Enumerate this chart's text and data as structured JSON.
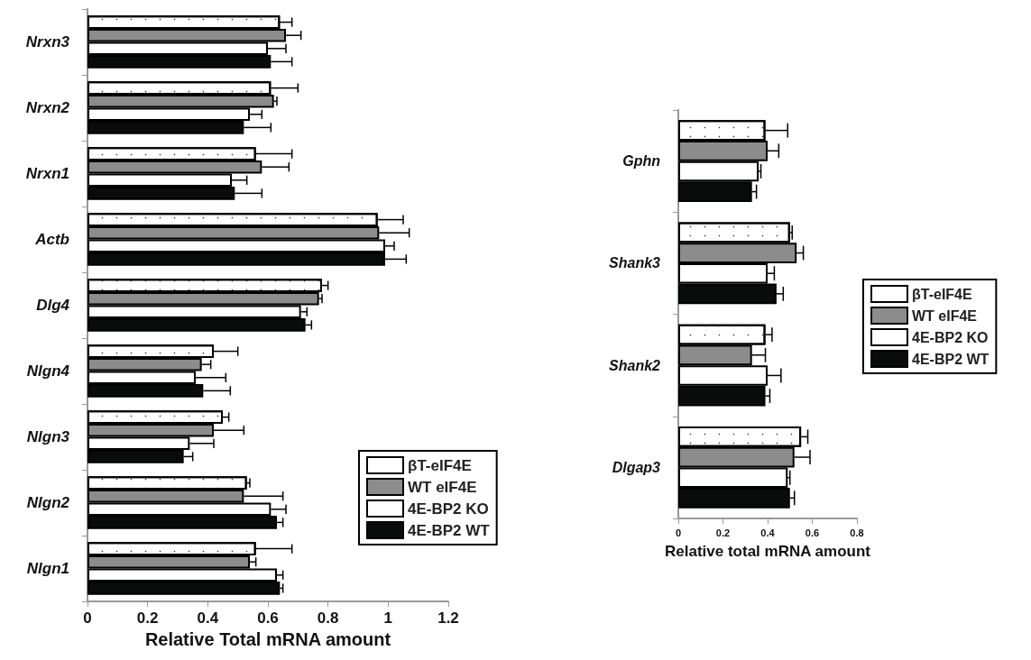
{
  "chart_data": [
    {
      "type": "bar",
      "orientation": "horizontal",
      "xlabel": "Relative Total mRNA amount",
      "categories": [
        "Nrxn3",
        "Nrxn2",
        "Nrxn1",
        "Actb",
        "Dlg4",
        "Nlgn4",
        "Nlgn3",
        "Nlgn2",
        "Nlgn1"
      ],
      "series": [
        {
          "name": "βT-eIF4E",
          "color": "#ffffff",
          "values": [
            0.64,
            0.61,
            0.56,
            0.965,
            0.78,
            0.42,
            0.45,
            0.53,
            0.56
          ],
          "errors": [
            0.04,
            0.09,
            0.12,
            0.085,
            0.02,
            0.08,
            0.02,
            0.01,
            0.12
          ]
        },
        {
          "name": "WT eIF4E",
          "color": "#8c8c8c",
          "values": [
            0.66,
            0.62,
            0.58,
            0.97,
            0.77,
            0.38,
            0.42,
            0.52,
            0.54
          ],
          "errors": [
            0.05,
            0.01,
            0.09,
            0.1,
            0.01,
            0.03,
            0.1,
            0.13,
            0.02
          ]
        },
        {
          "name": "4E-BP2 KO",
          "color": "#ffffff",
          "values": [
            0.6,
            0.54,
            0.48,
            0.99,
            0.71,
            0.36,
            0.34,
            0.61,
            0.63
          ],
          "errors": [
            0.06,
            0.04,
            0.05,
            0.03,
            0.02,
            0.1,
            0.08,
            0.05,
            0.02
          ]
        },
        {
          "name": "4E-BP2 WT",
          "color": "#0a0c0c",
          "values": [
            0.61,
            0.52,
            0.49,
            0.99,
            0.725,
            0.385,
            0.32,
            0.63,
            0.64
          ],
          "errors": [
            0.07,
            0.09,
            0.09,
            0.07,
            0.02,
            0.09,
            0.03,
            0.02,
            0.01
          ]
        }
      ],
      "xlim": [
        0,
        1.2
      ],
      "xticks": [
        0,
        0.2,
        0.4,
        0.6,
        0.8,
        1,
        1.2
      ],
      "grid": false,
      "legend": "bottom right"
    },
    {
      "type": "bar",
      "orientation": "horizontal",
      "xlabel": "Relative total mRNA amount",
      "categories": [
        "Gphn",
        "Shank3",
        "Shank2",
        "Dlgap3"
      ],
      "series": [
        {
          "name": "βT-eIF4E",
          "color": "#ffffff",
          "values": [
            0.39,
            0.5,
            0.39,
            0.55
          ],
          "errors": [
            0.1,
            0.01,
            0.03,
            0.03
          ]
        },
        {
          "name": "WT eIF4E",
          "color": "#8c8c8c",
          "values": [
            0.4,
            0.53,
            0.33,
            0.52
          ],
          "errors": [
            0.05,
            0.03,
            0.06,
            0.07
          ]
        },
        {
          "name": "4E-BP2 KO",
          "color": "#ffffff",
          "values": [
            0.36,
            0.4,
            0.4,
            0.49
          ],
          "errors": [
            0.01,
            0.03,
            0.06,
            0.01
          ]
        },
        {
          "name": "4E-BP2 WT",
          "color": "#0a0c0c",
          "values": [
            0.33,
            0.44,
            0.39,
            0.5
          ],
          "errors": [
            0.02,
            0.03,
            0.02,
            0.02
          ]
        }
      ],
      "xlim": [
        0,
        0.8
      ],
      "xticks": [
        0,
        0.2,
        0.4,
        0.6,
        0.8
      ],
      "grid": false,
      "legend": "right"
    }
  ]
}
